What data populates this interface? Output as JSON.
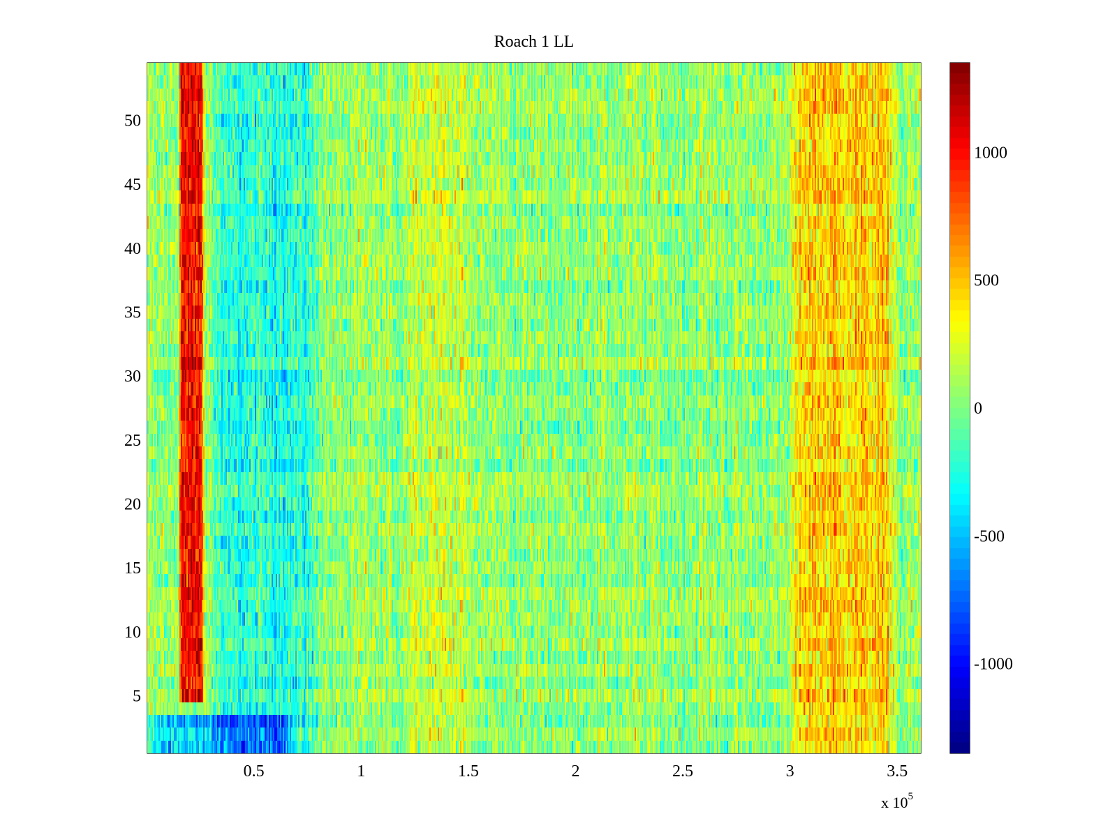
{
  "chart_data": {
    "type": "heatmap",
    "title": "Roach 1 LL",
    "xlabel": "",
    "ylabel": "",
    "x_multiplier_label": {
      "base": "x 10",
      "exponent": "5"
    },
    "xlim": [
      0.003,
      3.61
    ],
    "ylim": [
      0.5,
      54.5
    ],
    "x_ticks": [
      0.5,
      1,
      1.5,
      2,
      2.5,
      3,
      3.5
    ],
    "x_tick_labels": [
      "0.5",
      "1",
      "1.5",
      "2",
      "2.5",
      "3",
      "3.5"
    ],
    "y_ticks": [
      5,
      10,
      15,
      20,
      25,
      30,
      35,
      40,
      45,
      50
    ],
    "y_tick_labels": [
      "5",
      "10",
      "15",
      "20",
      "25",
      "30",
      "35",
      "40",
      "45",
      "50"
    ],
    "rows": 54,
    "color_scale": {
      "colormap": "jet",
      "clim": [
        -1350,
        1350
      ],
      "ticks": [
        -1000,
        -500,
        0,
        500,
        1000
      ],
      "tick_labels": [
        "-1000",
        "-500",
        "0",
        "500",
        "1000"
      ]
    },
    "features": [
      {
        "label": "high band",
        "x_range": [
          0.15,
          0.27
        ],
        "y_range": [
          4.5,
          54.5
        ],
        "level": 1000
      },
      {
        "label": "low region",
        "x_range": [
          0.3,
          0.8
        ],
        "y_range": [
          0.5,
          54.5
        ],
        "level": -250
      },
      {
        "label": "moderate band",
        "x_range": [
          1.2,
          1.5
        ],
        "y_range": [
          0.5,
          54.5
        ],
        "level": 200
      },
      {
        "label": "elevated region",
        "x_range": [
          3.0,
          3.5
        ],
        "y_range": [
          0.5,
          54.5
        ],
        "level": 450
      },
      {
        "label": "low bottom rows",
        "x_range": [
          0.003,
          0.7
        ],
        "y_range": [
          0.5,
          3.5
        ],
        "level": -450
      }
    ],
    "grid": false,
    "legend": "none"
  }
}
